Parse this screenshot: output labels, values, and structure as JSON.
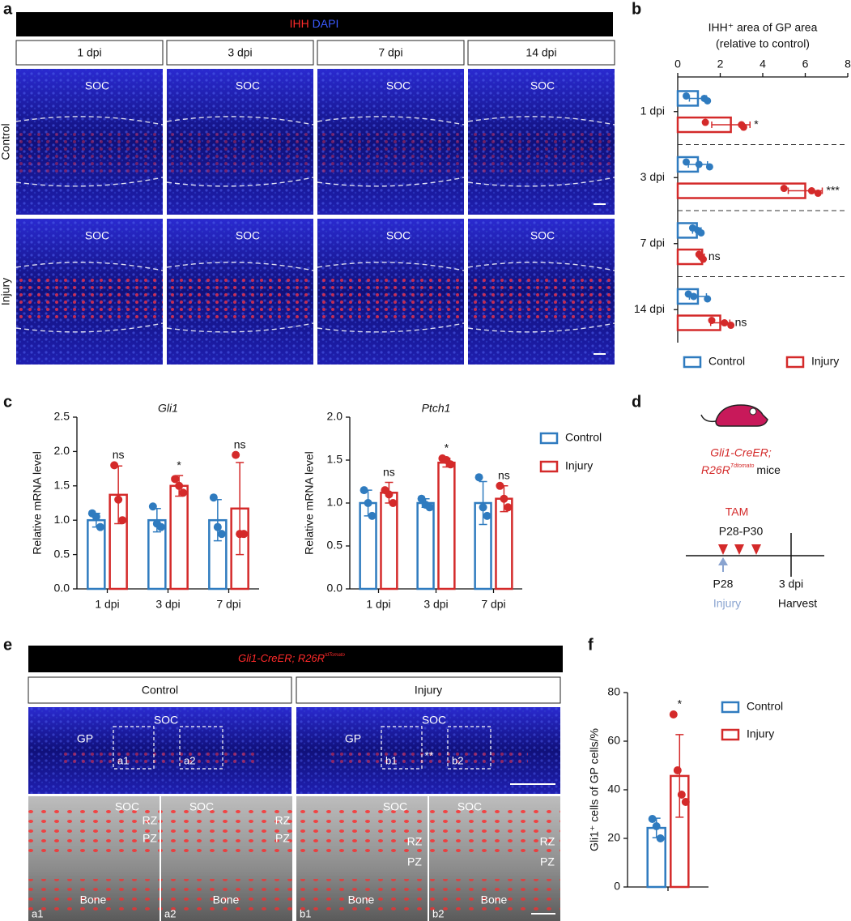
{
  "panel_labels": [
    "a",
    "b",
    "c",
    "d",
    "e",
    "f"
  ],
  "panel_a": {
    "header": [
      "IHH",
      "DAPI"
    ],
    "columns": [
      "1 dpi",
      "3 dpi",
      "7 dpi",
      "14 dpi"
    ],
    "rows": [
      "Control",
      "Injury"
    ],
    "image_label": "SOC"
  },
  "panel_d": {
    "genotype": "Gli1-CreER;",
    "genotype2": "R26R",
    "genotype_sup": "Tdtomato",
    "suffix": "mice",
    "treatment": "TAM",
    "treatment_days": "P28-P30",
    "start": "P28",
    "start_event": "Injury",
    "end": "3 dpi",
    "end_event": "Harvest"
  },
  "panel_e": {
    "header": "Gli1-CreER; R26R",
    "header_sup": "tdTomato",
    "columns": [
      "Control",
      "Injury"
    ],
    "soc": "SOC",
    "gp": "GP",
    "boxes": [
      "a1",
      "a2",
      "b1",
      "b2"
    ],
    "mark": "**",
    "zones": [
      "RZ",
      "PZ",
      "Bone"
    ]
  },
  "chart_data": [
    {
      "type": "hbar",
      "title": "IHH⁺ area of GP area",
      "subtitle": "(relative to control)",
      "categories": [
        "1 dpi",
        "3 dpi",
        "7 dpi",
        "14 dpi"
      ],
      "series": [
        {
          "name": "Control",
          "color": "#2f7bbf",
          "values": [
            0.95,
            0.95,
            0.9,
            0.95
          ],
          "errors": [
            0.4,
            0.45,
            0.2,
            0.4
          ],
          "points": [
            [
              0.4,
              1.25,
              1.4
            ],
            [
              0.4,
              1.0,
              1.5
            ],
            [
              0.7,
              0.95,
              1.1
            ],
            [
              0.5,
              0.75,
              1.4
            ]
          ]
        },
        {
          "name": "Injury",
          "color": "#d42a2a",
          "values": [
            2.5,
            6.0,
            1.15,
            2.0
          ],
          "errors": [
            0.9,
            0.8,
            0.1,
            0.45
          ],
          "points": [
            [
              1.3,
              3.0,
              3.1
            ],
            [
              5.0,
              6.3,
              6.6
            ],
            [
              1.0,
              1.1,
              1.2
            ],
            [
              1.6,
              2.2,
              2.5
            ]
          ]
        }
      ],
      "annotations": [
        "*",
        "***",
        "ns",
        "ns"
      ],
      "xlim": [
        0,
        8
      ],
      "xticks": [
        0,
        2,
        4,
        6,
        8
      ],
      "legend": "bottom"
    },
    {
      "type": "bar",
      "title": "Gli1",
      "ylabel": "Relative mRNA  level",
      "categories": [
        "1 dpi",
        "3 dpi",
        "7 dpi"
      ],
      "series": [
        {
          "color": "#2f7bbf",
          "values": [
            1.0,
            1.0,
            1.0
          ],
          "errors": [
            0.1,
            0.17,
            0.3
          ],
          "points": [
            [
              1.1,
              1.05,
              0.9
            ],
            [
              1.2,
              0.95,
              0.9
            ],
            [
              1.33,
              0.9,
              0.8
            ]
          ]
        },
        {
          "color": "#d42a2a",
          "values": [
            1.37,
            1.5,
            1.17
          ],
          "errors": [
            0.42,
            0.15,
            0.67
          ],
          "points": [
            [
              1.8,
              1.3,
              1.0
            ],
            [
              1.6,
              1.5,
              1.4
            ],
            [
              1.95,
              0.8,
              0.8
            ]
          ]
        }
      ],
      "annotations": [
        "ns",
        "*",
        "ns"
      ],
      "ylim": [
        0,
        2.5
      ],
      "yticks": [
        {
          "value": 0,
          "label": "0.0"
        },
        {
          "value": 0.5,
          "label": "0.5"
        },
        {
          "value": 1,
          "label": "1.0"
        },
        {
          "value": 1.5,
          "label": "1.5"
        },
        {
          "value": 2,
          "label": "2.0"
        },
        {
          "value": 2.5,
          "label": "2.5"
        }
      ]
    },
    {
      "type": "bar",
      "title": "Ptch1",
      "ylabel": "Relative mRNA  level",
      "categories": [
        "1 dpi",
        "3 dpi",
        "7 dpi"
      ],
      "series": [
        {
          "name": "Control",
          "color": "#2f7bbf",
          "values": [
            1.0,
            1.0,
            1.0
          ],
          "errors": [
            0.15,
            0.05,
            0.25
          ],
          "points": [
            [
              1.15,
              1.0,
              0.85
            ],
            [
              1.05,
              0.98,
              0.95
            ],
            [
              1.3,
              0.95,
              0.85
            ]
          ]
        },
        {
          "name": "Injury",
          "color": "#d42a2a",
          "values": [
            1.12,
            1.47,
            1.05
          ],
          "errors": [
            0.12,
            0.05,
            0.15
          ],
          "points": [
            [
              1.15,
              1.1,
              1.0
            ],
            [
              1.52,
              1.5,
              1.45
            ],
            [
              1.2,
              1.05,
              0.95
            ]
          ]
        }
      ],
      "annotations": [
        "ns",
        "*",
        "ns"
      ],
      "ylim": [
        0,
        2
      ],
      "yticks": [
        {
          "value": 0,
          "label": "0.0"
        },
        {
          "value": 0.5,
          "label": "0.5"
        },
        {
          "value": 1,
          "label": "1.0"
        },
        {
          "value": 1.5,
          "label": "1.5"
        },
        {
          "value": 2,
          "label": "2.0"
        }
      ],
      "legend": "right"
    },
    {
      "type": "bar",
      "ylabel": "Gli1⁺ cells of GP cells/%",
      "categories": [
        null
      ],
      "series": [
        {
          "name": "Control",
          "color": "#2f7bbf",
          "values": [
            24.3
          ],
          "errors": [
            4
          ],
          "points": [
            [
              28,
              25,
              20
            ]
          ]
        },
        {
          "name": "Injury",
          "color": "#d42a2a",
          "values": [
            45.7
          ],
          "errors": [
            17
          ],
          "points": [
            [
              71,
              48,
              38,
              35
            ]
          ]
        }
      ],
      "annotations": [
        "*"
      ],
      "ylim": [
        0,
        80
      ],
      "yticks": [
        0,
        20,
        40,
        60,
        80
      ],
      "legend": "right"
    }
  ]
}
